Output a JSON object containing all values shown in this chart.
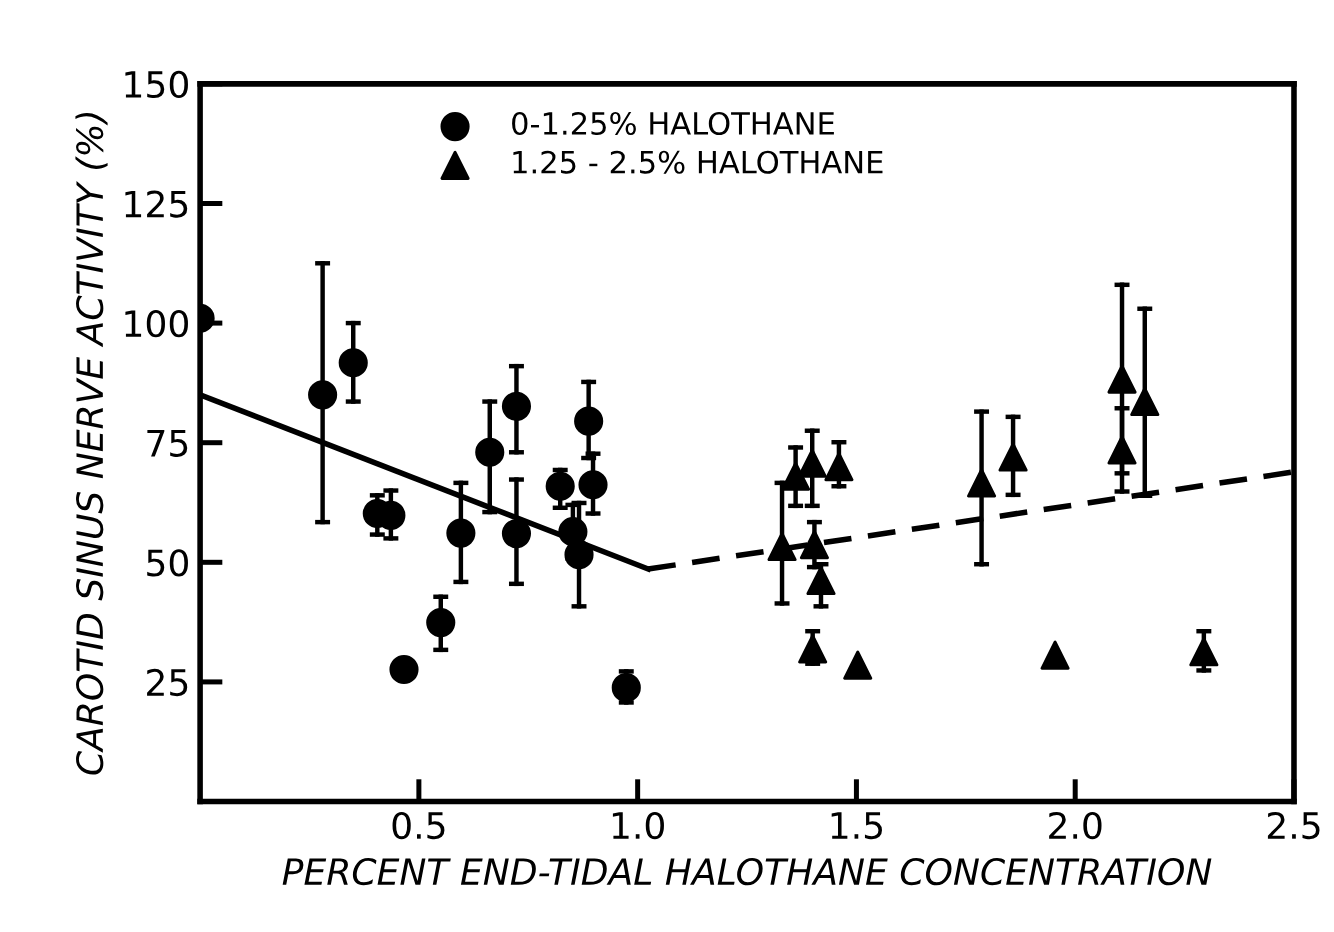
{
  "chart_data": {
    "type": "scatter",
    "xlabel": "PERCENT END-TIDAL HALOTHANE CONCENTRATION",
    "ylabel": "CAROTID SINUS NERVE ACTIVITY (%)",
    "xlim": [
      0,
      2.5
    ],
    "ylim": [
      0,
      150
    ],
    "xticks": [
      0.5,
      {
        "value": 1,
        "label": "1.0"
      },
      1.5,
      {
        "value": 2,
        "label": "2.0"
      },
      2.5
    ],
    "yticks": [
      25,
      50,
      75,
      100,
      125,
      150
    ],
    "legend": "top left",
    "grid": false,
    "series": [
      {
        "name": "0-1.25% HALOTHANE",
        "color": "#000000",
        "marker": "circle",
        "x": [
          0.0,
          0.28,
          0.35,
          0.405,
          0.436,
          0.466,
          0.55,
          0.596,
          0.662,
          0.723,
          0.723,
          0.823,
          0.852,
          0.866,
          0.888,
          0.898,
          0.974
        ],
        "values": [
          101,
          85,
          91.7,
          60.2,
          59.8,
          27.6,
          37.4,
          56.1,
          73,
          82.6,
          56,
          65.9,
          56.4,
          51.6,
          79.5,
          66.2,
          23.8
        ],
        "errors": [
          null,
          [
            58.4,
            112.5
          ],
          [
            83.6,
            100
          ],
          [
            55.8,
            64
          ],
          [
            55,
            65
          ],
          null,
          [
            31.7,
            42.8
          ],
          [
            45.9,
            66.6
          ],
          [
            60.5,
            83.6
          ],
          [
            73,
            91
          ],
          [
            45.5,
            67.3
          ],
          [
            61.4,
            69.3
          ],
          [
            50.8,
            62
          ],
          [
            40.8,
            62.4
          ],
          [
            71.8,
            87.7
          ],
          [
            60.2,
            72.7
          ],
          [
            20.7,
            27.2
          ]
        ]
      },
      {
        "name": "1.25 - 2.5% HALOTHANE",
        "color": "#000000",
        "marker": "triangle",
        "x": [
          1.33,
          1.361,
          1.399,
          1.404,
          1.419,
          1.4,
          1.46,
          1.503,
          1.786,
          1.858,
          1.954,
          2.107,
          2.107,
          2.159,
          2.294
        ],
        "values": [
          53.3,
          68,
          70.7,
          53.7,
          46.2,
          31.9,
          70,
          28.5,
          66.6,
          72,
          30.6,
          88.3,
          73.5,
          83.6,
          31.3
        ],
        "errors": [
          [
            41.4,
            66.6
          ],
          [
            61.8,
            74
          ],
          [
            61.8,
            77.5
          ],
          [
            49,
            58.4
          ],
          [
            40.8,
            49.6
          ],
          [
            28.8,
            35.6
          ],
          [
            65.9,
            75.1
          ],
          null,
          [
            49.6,
            81.5
          ],
          [
            64.1,
            80.4
          ],
          null,
          [
            68.6,
            108
          ],
          [
            64.8,
            82.2
          ],
          [
            63.9,
            103
          ],
          [
            27.4,
            35.6
          ]
        ]
      },
      {
        "type": "line",
        "color": "#000000",
        "line_style": "solid",
        "marker": "none",
        "x": [
          0,
          1.024
        ],
        "values": [
          85,
          48.6
        ]
      },
      {
        "type": "line",
        "color": "#000000",
        "line_style": "dashed",
        "marker": "none",
        "x": [
          1.024,
          2.5
        ],
        "values": [
          48.6,
          68.9
        ]
      }
    ]
  }
}
